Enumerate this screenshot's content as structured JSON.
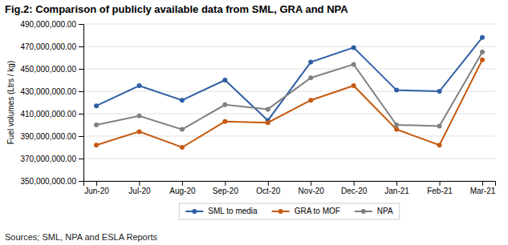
{
  "chart_data": {
    "type": "line",
    "title": "Fig.2: Comparison of publicly available data from SML, GRA and NPA",
    "subtitle": "Sources; SML, NPA and ESLA Reports",
    "y_label": "Fuel volumes (Ltrs / kg)",
    "categories": [
      "Jun-20",
      "Jul-20",
      "Aug-20",
      "Sep-20",
      "Oct-20",
      "Nov-20",
      "Dec-20",
      "Jan-21",
      "Feb-21",
      "Mar-21"
    ],
    "series": [
      {
        "name": "SML to media",
        "color": "#2e5fa3",
        "marker": "circle",
        "values": [
          417000000,
          435000000,
          422000000,
          440000000,
          404000000,
          456000000,
          469000000,
          431000000,
          430000000,
          478000000
        ]
      },
      {
        "name": "GRA to MOF",
        "color": "#c55a11",
        "marker": "circle",
        "values": [
          382000000,
          394000000,
          380000000,
          403000000,
          402000000,
          422000000,
          435000000,
          396000000,
          382000000,
          458000000
        ]
      },
      {
        "name": "NPA",
        "color": "#808080",
        "marker": "circle",
        "values": [
          400000000,
          408000000,
          396000000,
          418000000,
          414000000,
          442000000,
          454000000,
          400000000,
          399000000,
          465000000
        ]
      }
    ],
    "ylim": [
      350000000,
      490000000
    ],
    "yticks": [
      {
        "value": 350000000,
        "label": "350,000,000.00"
      },
      {
        "value": 370000000,
        "label": "370,000,000.00"
      },
      {
        "value": 390000000,
        "label": "390,000,000.00"
      },
      {
        "value": 410000000,
        "label": "410,000,000.00"
      },
      {
        "value": 430000000,
        "label": "430,000,000.00"
      },
      {
        "value": 450000000,
        "label": "450,000,000.00"
      },
      {
        "value": 470000000,
        "label": "470,000,000.00"
      },
      {
        "value": 490000000,
        "label": "490,000,000.00"
      }
    ],
    "grid": true,
    "legend": "bottom"
  }
}
